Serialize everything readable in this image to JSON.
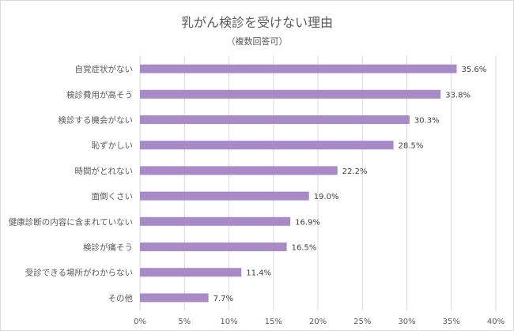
{
  "chart_data": {
    "type": "bar",
    "orientation": "horizontal",
    "title": "乳がん検診を受けない理由",
    "subtitle": "（複数回答可）",
    "categories": [
      "自覚症状がない",
      "検診費用が高そう",
      "検診する機会がない",
      "恥ずかしい",
      "時間がとれない",
      "面倒くさい",
      "健康診断の内容に含まれていない",
      "検診が痛そう",
      "受診できる場所がわからない",
      "その他"
    ],
    "values": [
      35.6,
      33.8,
      30.3,
      28.5,
      22.2,
      19.0,
      16.9,
      16.5,
      11.4,
      7.7
    ],
    "value_labels": [
      "35.6%",
      "33.8%",
      "30.3%",
      "28.5%",
      "22.2%",
      "19.0%",
      "16.9%",
      "16.5%",
      "11.4%",
      "7.7%"
    ],
    "x_ticks": [
      "0%",
      "5%",
      "10%",
      "15%",
      "20%",
      "25%",
      "30%",
      "35%",
      "40%"
    ],
    "xlim": [
      0,
      40
    ],
    "grid": true,
    "bar_color": "#a98ac9",
    "xlabel": "",
    "ylabel": ""
  }
}
